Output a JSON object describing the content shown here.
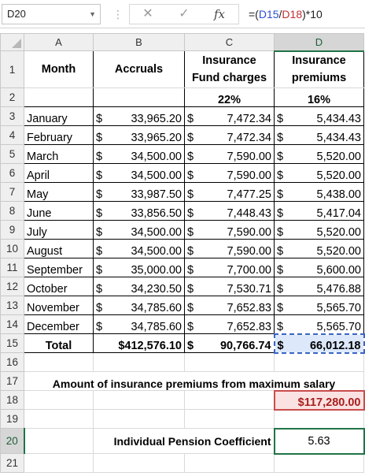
{
  "formula_bar": {
    "name_box": "D20",
    "fx_label": "fx",
    "formula_prefix": "=(",
    "ref1": "D15",
    "slash": "/",
    "ref2": "D18",
    "formula_suffix": ")*10"
  },
  "columns": [
    "A",
    "B",
    "C",
    "D"
  ],
  "header": {
    "month": "Month",
    "accruals": "Accruals",
    "fund_line1": "Insurance",
    "fund_line2": "Fund charges",
    "prem_line1": "Insurance",
    "prem_line2": "premiums",
    "fund_rate": "22%",
    "prem_rate": "16%"
  },
  "currency_symbol": "$",
  "rows": [
    {
      "num": "3",
      "month": "January",
      "accruals": "33,965.20",
      "fund": "7,472.34",
      "premium": "5,434.43"
    },
    {
      "num": "4",
      "month": "February",
      "accruals": "33,965.20",
      "fund": "7,472.34",
      "premium": "5,434.43"
    },
    {
      "num": "5",
      "month": "March",
      "accruals": "34,500.00",
      "fund": "7,590.00",
      "premium": "5,520.00"
    },
    {
      "num": "6",
      "month": "April",
      "accruals": "34,500.00",
      "fund": "7,590.00",
      "premium": "5,520.00"
    },
    {
      "num": "7",
      "month": "May",
      "accruals": "33,987.50",
      "fund": "7,477.25",
      "premium": "5,438.00"
    },
    {
      "num": "8",
      "month": "June",
      "accruals": "33,856.50",
      "fund": "7,448.43",
      "premium": "5,417.04"
    },
    {
      "num": "9",
      "month": "July",
      "accruals": "34,500.00",
      "fund": "7,590.00",
      "premium": "5,520.00"
    },
    {
      "num": "10",
      "month": "August",
      "accruals": "34,500.00",
      "fund": "7,590.00",
      "premium": "5,520.00"
    },
    {
      "num": "11",
      "month": "September",
      "accruals": "35,000.00",
      "fund": "7,700.00",
      "premium": "5,600.00"
    },
    {
      "num": "12",
      "month": "October",
      "accruals": "34,230.50",
      "fund": "7,530.71",
      "premium": "5,476.88"
    },
    {
      "num": "13",
      "month": "November",
      "accruals": "34,785.60",
      "fund": "7,652.83",
      "premium": "5,565.70"
    },
    {
      "num": "14",
      "month": "December",
      "accruals": "34,785.60",
      "fund": "7,652.83",
      "premium": "5,565.70"
    }
  ],
  "total": {
    "label": "Total",
    "accruals": "$412,576.10",
    "fund": "90,766.74",
    "premium": "66,012.18"
  },
  "max_salary_label": "Amount of insurance premiums from maximum salary",
  "max_salary_value": "$117,280.00",
  "ipc_label": "Individual Pension Coefficient",
  "ipc_value": "5.63",
  "row_numbers": {
    "r1": "1",
    "r2": "2",
    "r15": "15",
    "r16": "16",
    "r17": "17",
    "r18": "18",
    "r19": "19",
    "r20": "20",
    "r21": "21"
  }
}
